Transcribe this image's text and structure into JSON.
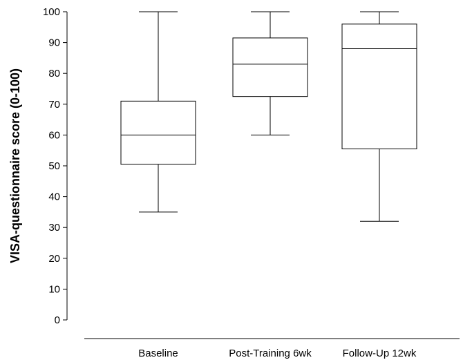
{
  "chart_data": {
    "type": "box",
    "title": "",
    "ylabel": "VISA-questionnaire score (0-100)",
    "xlabel": "",
    "ylim": [
      0,
      100
    ],
    "yticks": [
      0,
      10,
      20,
      30,
      40,
      50,
      60,
      70,
      80,
      90,
      100
    ],
    "ytick_labels": [
      "0",
      "10",
      "20",
      "30",
      "40",
      "50",
      "60",
      "70",
      "80",
      "90",
      "100"
    ],
    "categories": [
      "Baseline",
      "Post-Training 6wk",
      "Follow-Up 12wk"
    ],
    "boxes": [
      {
        "category": "Baseline",
        "min": 35,
        "q1": 50.5,
        "median": 60,
        "q3": 71,
        "max": 100
      },
      {
        "category": "Post-Training 6wk",
        "min": 60,
        "q1": 72.5,
        "median": 83,
        "q3": 91.5,
        "max": 100
      },
      {
        "category": "Follow-Up 12wk",
        "min": 32,
        "q1": 55.5,
        "median": 88,
        "q3": 96,
        "max": 100
      }
    ],
    "grid": false,
    "legend": "none",
    "colors": {
      "stroke": "#000000",
      "fill": "#ffffff"
    }
  }
}
